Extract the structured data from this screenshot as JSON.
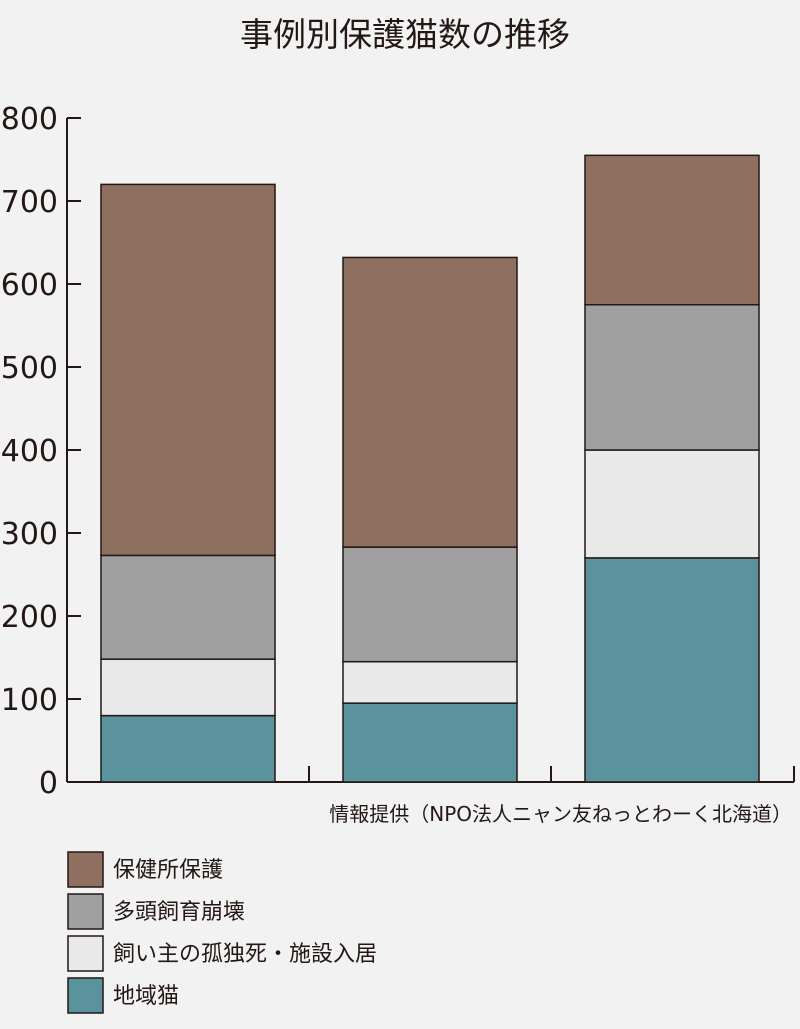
{
  "chart_data": {
    "type": "bar",
    "stacked": true,
    "title": "事例別保護猫数の推移",
    "xlabel": "",
    "ylabel": "",
    "ylim": [
      0,
      800
    ],
    "yticks": [
      "0",
      "100",
      "200",
      "300",
      "400",
      "500",
      "600",
      "700",
      "800"
    ],
    "categories": [
      "",
      "",
      ""
    ],
    "series": [
      {
        "name": "地域猫",
        "color": "#5a929d",
        "values": [
          80,
          95,
          270
        ]
      },
      {
        "name": "飼い主の孤独死・施設入居",
        "color": "#e9e9e9",
        "values": [
          68,
          50,
          130
        ]
      },
      {
        "name": "多頭飼育崩壊",
        "color": "#a0a0a0",
        "values": [
          125,
          138,
          175
        ]
      },
      {
        "name": "保健所保護",
        "color": "#8f7060",
        "values": [
          447,
          349,
          180
        ]
      }
    ],
    "source": "情報提供（NPO法人ニャン友ねっとわーく北海道）",
    "legend_order": [
      "保健所保護",
      "多頭飼育崩壊",
      "飼い主の孤独死・施設入居",
      "地域猫"
    ],
    "grid": false,
    "legend_position": "bottom-left"
  }
}
